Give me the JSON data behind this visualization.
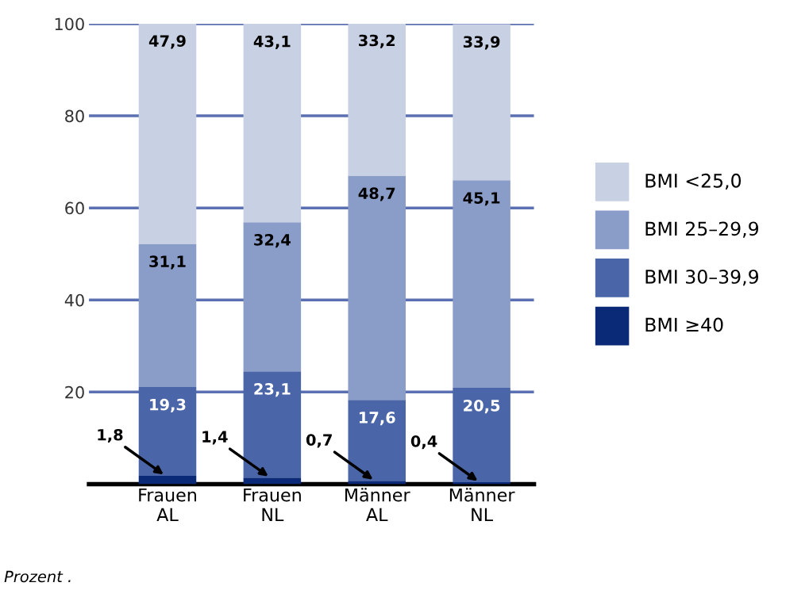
{
  "chart_data": {
    "type": "bar",
    "stacked": true,
    "categories": [
      "Frauen\nAL",
      "Frauen\nNL",
      "Männer\nAL",
      "Männer\nNL"
    ],
    "series": [
      {
        "name": "BMI ≥40",
        "color": "#0a2a78",
        "values": [
          1.8,
          1.4,
          0.7,
          0.4
        ],
        "value_labels": [
          "1,8",
          "1,4",
          "0,7",
          "0,4"
        ]
      },
      {
        "name": "BMI 30–39,9",
        "color": "#4a66a8",
        "values": [
          19.3,
          23.1,
          17.6,
          20.5
        ],
        "value_labels": [
          "19,3",
          "23,1",
          "17,6",
          "20,5"
        ]
      },
      {
        "name": "BMI 25–29,9",
        "color": "#8a9cc8",
        "values": [
          31.1,
          32.4,
          48.7,
          45.1
        ],
        "value_labels": [
          "31,1",
          "32,4",
          "48,7",
          "45,1"
        ]
      },
      {
        "name": "BMI <25,0",
        "color": "#c8d0e4",
        "values": [
          47.9,
          43.1,
          33.2,
          33.9
        ],
        "value_labels": [
          "47,9",
          "43,1",
          "33,2",
          "33,9"
        ]
      }
    ],
    "ylim": [
      0,
      100
    ],
    "yticks": [
      20,
      40,
      60,
      80,
      100
    ],
    "grid": "y",
    "legend": "right",
    "annotations": [
      "Prozent ."
    ]
  }
}
